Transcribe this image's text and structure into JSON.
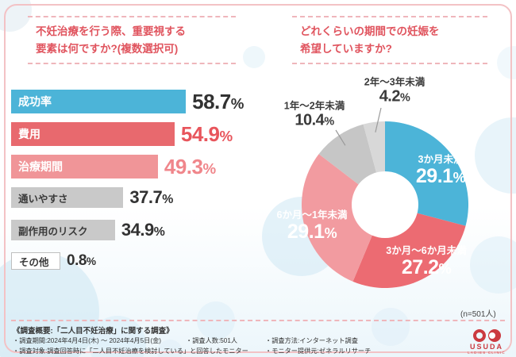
{
  "left_chart": {
    "title_lines": [
      "不妊治療を行う際、重要視する",
      "要素は何ですか?(複数選択可)"
    ]
  },
  "right_chart": {
    "title_lines": [
      "どれくらいの期間での妊娠を",
      "希望していますか?"
    ]
  },
  "chart_data": [
    {
      "type": "bar",
      "title": "不妊治療を行う際、重要視する要素は何ですか?(複数選択可)",
      "categories": [
        "成功率",
        "費用",
        "治療期間",
        "通いやすさ",
        "副作用のリスク",
        "その他"
      ],
      "values": [
        58.7,
        54.9,
        49.3,
        37.7,
        34.9,
        0.8
      ],
      "unit": "%",
      "xlim": [
        0,
        60
      ],
      "bar_colors": [
        "#4cb4d8",
        "#e8696e",
        "#f09598",
        "#c9c9c9",
        "#c9c9c9",
        "#ffffff"
      ],
      "label_colors": [
        "#ffffff",
        "#ffffff",
        "#ffffff",
        "#3a3a3a",
        "#3a3a3a",
        "#3a3a3a"
      ],
      "value_colors": [
        "#323232",
        "#e8555c",
        "#f0868b",
        "#323232",
        "#323232",
        "#323232"
      ]
    },
    {
      "type": "pie",
      "title": "どれくらいの期間での妊娠を希望していますか?",
      "categories": [
        "3か月未満",
        "3か月〜6か月未満",
        "6か月〜1年未満",
        "1年〜2年未満",
        "2年〜3年未満"
      ],
      "values": [
        29.1,
        27.2,
        29.1,
        10.4,
        4.2
      ],
      "unit": "%",
      "colors": [
        "#4cb4d8",
        "#ec6b72",
        "#f29ba0",
        "#c6c6c6",
        "#d8d8d8"
      ],
      "donut": true,
      "n_label": "(n=501人)"
    }
  ],
  "footer": {
    "overview": "《調査概要:「二人目不妊治療」に関する調査》",
    "bullet": "・",
    "items": [
      "調査期間:2024年4月4日(木) 〜 2024年4月5日(金)",
      "調査人数:501人",
      "調査方法:インターネット調査",
      "調査対象:調査回答時に「二人目不妊治療を検討している」と回答したモニター",
      "モニター提供元:ゼネラルリサーチ"
    ]
  },
  "logo": {
    "name": "USUDA",
    "sub": "LADIES CLINIC"
  }
}
